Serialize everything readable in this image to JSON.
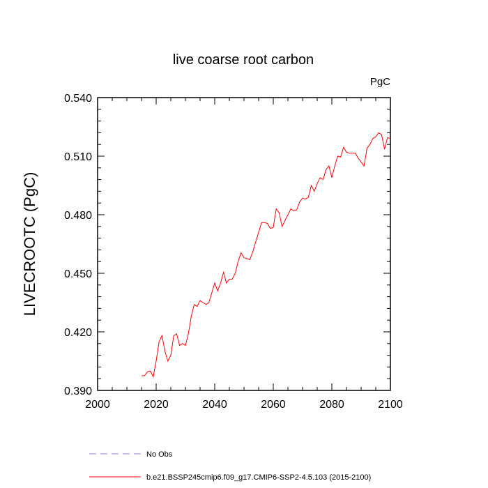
{
  "chart_data": {
    "type": "line",
    "title": "live coarse root carbon",
    "units_label": "PgC",
    "xlabel": "",
    "ylabel": "LIVECROOTC  (PgC)",
    "xlim": [
      2000,
      2100
    ],
    "ylim": [
      0.39,
      0.54
    ],
    "x_ticks": [
      2000,
      2020,
      2040,
      2060,
      2080,
      2100
    ],
    "x_tick_labels": [
      "2000",
      "2020",
      "2040",
      "2060",
      "2080",
      "2100"
    ],
    "y_ticks": [
      0.39,
      0.42,
      0.45,
      0.48,
      0.51,
      0.54
    ],
    "y_tick_labels": [
      "0.390",
      "0.420",
      "0.450",
      "0.480",
      "0.510",
      "0.540"
    ],
    "grid": false,
    "legend_position": "bottom",
    "series": [
      {
        "name": "No Obs",
        "color": "#8080ff",
        "dash": "dashed",
        "x": [],
        "y": []
      },
      {
        "name": "b.e21.BSSP245cmip6.f09_g17.CMIP6-SSP2-4.5.103 (2015-2100)",
        "color": "#ff0000",
        "dash": "solid",
        "x": [
          2015,
          2016,
          2017,
          2018,
          2019,
          2020,
          2021,
          2022,
          2023,
          2024,
          2025,
          2026,
          2027,
          2028,
          2029,
          2030,
          2031,
          2032,
          2033,
          2034,
          2035,
          2036,
          2037,
          2038,
          2039,
          2040,
          2041,
          2042,
          2043,
          2044,
          2045,
          2046,
          2047,
          2048,
          2049,
          2050,
          2051,
          2052,
          2053,
          2054,
          2055,
          2056,
          2057,
          2058,
          2059,
          2060,
          2061,
          2062,
          2063,
          2064,
          2065,
          2066,
          2067,
          2068,
          2069,
          2070,
          2071,
          2072,
          2073,
          2074,
          2075,
          2076,
          2077,
          2078,
          2079,
          2080,
          2081,
          2082,
          2083,
          2084,
          2085,
          2086,
          2087,
          2088,
          2089,
          2090,
          2091,
          2092,
          2093,
          2094,
          2095,
          2096,
          2097,
          2098,
          2099,
          2100
        ],
        "y": [
          0.3975,
          0.3975,
          0.3995,
          0.4,
          0.397,
          0.405,
          0.415,
          0.418,
          0.41,
          0.405,
          0.408,
          0.418,
          0.419,
          0.413,
          0.414,
          0.413,
          0.419,
          0.428,
          0.434,
          0.433,
          0.436,
          0.435,
          0.434,
          0.435,
          0.44,
          0.445,
          0.441,
          0.445,
          0.4505,
          0.445,
          0.447,
          0.447,
          0.45,
          0.456,
          0.4605,
          0.458,
          0.4575,
          0.457,
          0.461,
          0.466,
          0.471,
          0.476,
          0.476,
          0.4755,
          0.473,
          0.4735,
          0.483,
          0.481,
          0.474,
          0.477,
          0.48,
          0.483,
          0.482,
          0.4825,
          0.4865,
          0.4885,
          0.488,
          0.489,
          0.495,
          0.492,
          0.496,
          0.499,
          0.498,
          0.503,
          0.505,
          0.499,
          0.505,
          0.51,
          0.5095,
          0.5145,
          0.512,
          0.5115,
          0.5115,
          0.5115,
          0.509,
          0.507,
          0.505,
          0.514,
          0.516,
          0.519,
          0.52,
          0.522,
          0.521,
          0.5135,
          0.5195,
          0.519
        ]
      }
    ]
  }
}
